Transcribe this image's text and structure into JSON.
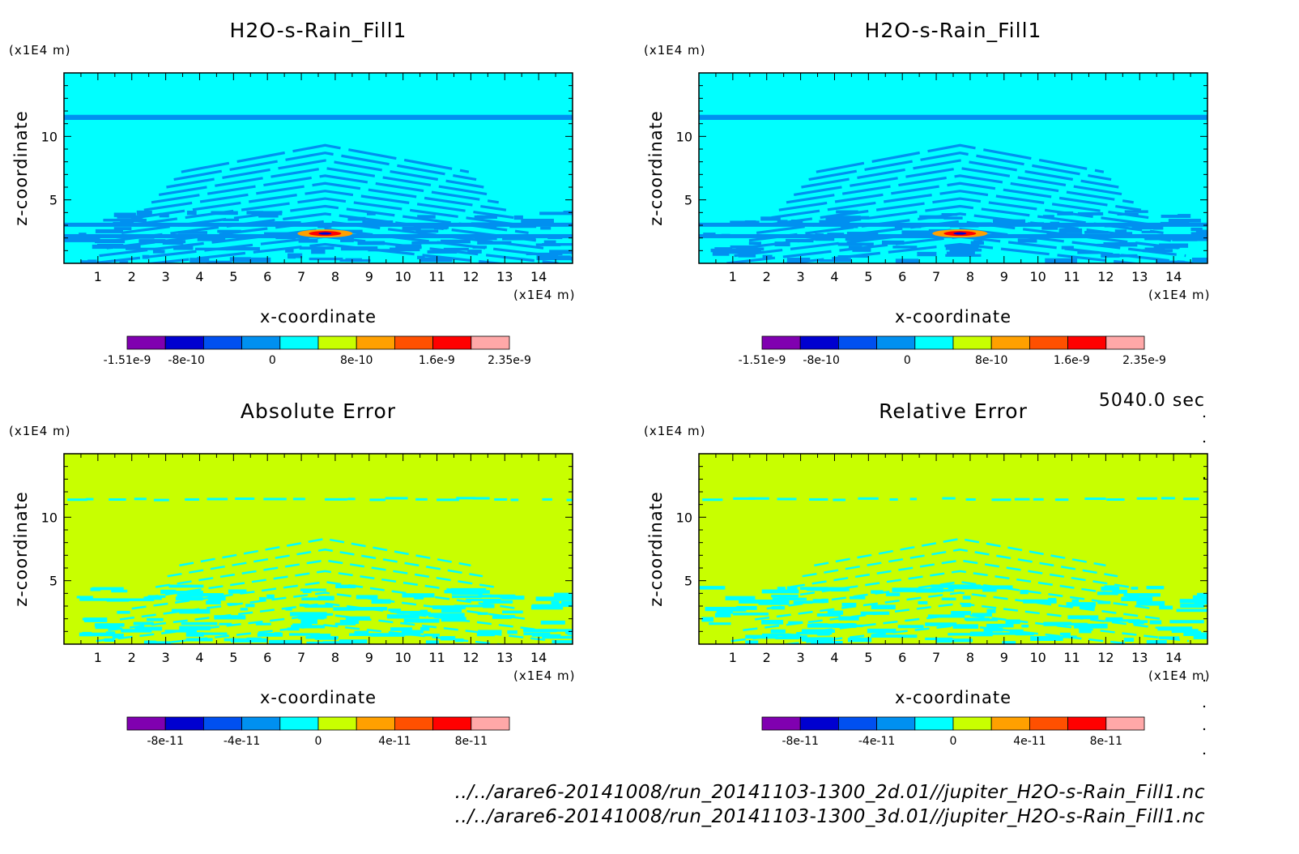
{
  "time_label": "5040.0 sec",
  "footer": {
    "line1": "../../arare6-20141008/run_20141103-1300_2d.01//jupiter_H2O-s-Rain_Fill1.nc",
    "line2": "../../arare6-20141008/run_20141103-1300_3d.01//jupiter_H2O-s-Rain_Fill1.nc"
  },
  "chart_data": [
    {
      "type": "heatmap",
      "title": "H2O-s-Rain_Fill1",
      "xlabel": "x-coordinate",
      "ylabel": "z-coordinate",
      "x_unit": "(x1E4 m)",
      "y_unit": "(x1E4 m)",
      "xlim": [
        0,
        15
      ],
      "ylim": [
        0,
        15
      ],
      "xticks": [
        1,
        2,
        3,
        4,
        5,
        6,
        7,
        8,
        9,
        10,
        11,
        12,
        13,
        14
      ],
      "yticks": [
        5,
        10
      ],
      "background_level": 0,
      "features": [
        "uniform layer at z≈11.5",
        "oblique wave bands z=0–9",
        "red/orange maximum near x≈7.7, z≈2.3"
      ],
      "colorbar": {
        "colors": [
          "#8000b0",
          "#0000d0",
          "#0050f0",
          "#0090f0",
          "#00ffff",
          "#c8ff00",
          "#ffa000",
          "#ff5000",
          "#ff0000",
          "#ffa8a8"
        ],
        "labels": [
          "-1.51e-9",
          "-8e-10",
          "0",
          "8e-10",
          "1.6e-9",
          "2.35e-9"
        ]
      }
    },
    {
      "type": "heatmap",
      "title": "H2O-s-Rain_Fill1",
      "xlabel": "x-coordinate",
      "ylabel": "z-coordinate",
      "x_unit": "(x1E4 m)",
      "y_unit": "(x1E4 m)",
      "xlim": [
        0,
        15
      ],
      "ylim": [
        0,
        15
      ],
      "xticks": [
        1,
        2,
        3,
        4,
        5,
        6,
        7,
        8,
        9,
        10,
        11,
        12,
        13,
        14
      ],
      "yticks": [
        5,
        10
      ],
      "background_level": 0,
      "features": [
        "uniform layer at z≈11.5",
        "oblique wave bands z=0–9",
        "red/orange maximum near x≈7.7, z≈2.3"
      ],
      "colorbar": {
        "colors": [
          "#8000b0",
          "#0000d0",
          "#0050f0",
          "#0090f0",
          "#00ffff",
          "#c8ff00",
          "#ffa000",
          "#ff5000",
          "#ff0000",
          "#ffa8a8"
        ],
        "labels": [
          "-1.51e-9",
          "-8e-10",
          "0",
          "8e-10",
          "1.6e-9",
          "2.35e-9"
        ]
      }
    },
    {
      "type": "heatmap",
      "title": "Absolute Error",
      "xlabel": "x-coordinate",
      "ylabel": "z-coordinate",
      "x_unit": "(x1E4 m)",
      "y_unit": "(x1E4 m)",
      "xlim": [
        0,
        15
      ],
      "ylim": [
        0,
        15
      ],
      "xticks": [
        1,
        2,
        3,
        4,
        5,
        6,
        7,
        8,
        9,
        10,
        11,
        12,
        13,
        14
      ],
      "yticks": [
        5,
        10
      ],
      "background_level": 0,
      "colorbar": {
        "colors": [
          "#8000b0",
          "#0000d0",
          "#0050f0",
          "#0090f0",
          "#00ffff",
          "#c8ff00",
          "#ffa000",
          "#ff5000",
          "#ff0000",
          "#ffa8a8"
        ],
        "labels": [
          "-8e-11",
          "-4e-11",
          "0",
          "4e-11",
          "8e-11"
        ]
      }
    },
    {
      "type": "heatmap",
      "title": "Relative Error",
      "xlabel": "x-coordinate",
      "ylabel": "z-coordinate",
      "x_unit": "(x1E4 m)",
      "y_unit": "(x1E4 m)",
      "xlim": [
        0,
        15
      ],
      "ylim": [
        0,
        15
      ],
      "xticks": [
        1,
        2,
        3,
        4,
        5,
        6,
        7,
        8,
        9,
        10,
        11,
        12,
        13,
        14
      ],
      "yticks": [
        5,
        10
      ],
      "background_level": 0,
      "colorbar": {
        "colors": [
          "#8000b0",
          "#0000d0",
          "#0050f0",
          "#0090f0",
          "#00ffff",
          "#c8ff00",
          "#ffa000",
          "#ff5000",
          "#ff0000",
          "#ffa8a8"
        ],
        "labels": [
          "-8e-11",
          "-4e-11",
          "0",
          "4e-11",
          "8e-11"
        ]
      }
    }
  ]
}
